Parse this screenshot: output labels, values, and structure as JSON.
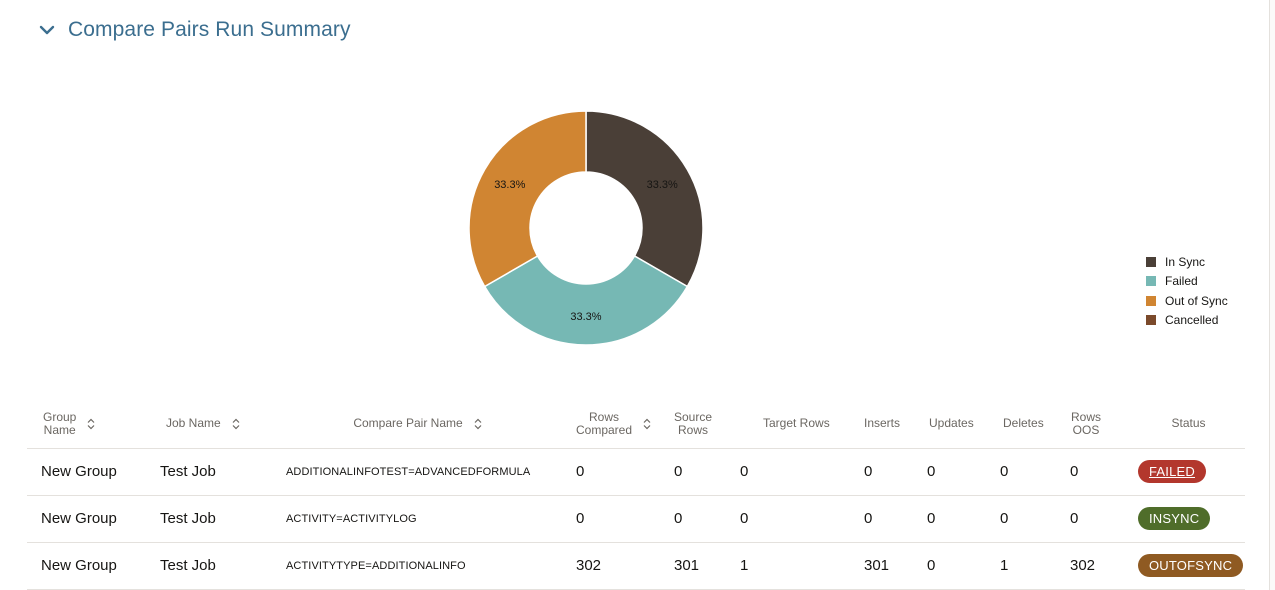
{
  "section": {
    "title": "Compare Pairs Run Summary"
  },
  "chart_data": {
    "type": "pie",
    "variant": "donut",
    "categories": [
      "In Sync",
      "Failed",
      "Out of Sync",
      "Cancelled"
    ],
    "values": [
      33.3,
      33.3,
      33.3,
      0
    ],
    "data_labels": [
      "33.3%",
      "33.3%",
      "33.3%",
      ""
    ],
    "colors": [
      "#4a3f37",
      "#76b8b4",
      "#d08532",
      "#7b4a2b"
    ],
    "legend_position": "right"
  },
  "table": {
    "headers": [
      {
        "label": "Group\nName",
        "sortable": true
      },
      {
        "label": "Job Name",
        "sortable": true
      },
      {
        "label": "Compare Pair Name",
        "sortable": true
      },
      {
        "label": "Rows\nCompared",
        "sortable": true
      },
      {
        "label": "Source\nRows",
        "sortable": false
      },
      {
        "label": "Target Rows",
        "sortable": false
      },
      {
        "label": "Inserts",
        "sortable": false
      },
      {
        "label": "Updates",
        "sortable": false
      },
      {
        "label": "Deletes",
        "sortable": false
      },
      {
        "label": "Rows\nOOS",
        "sortable": false
      },
      {
        "label": "Status",
        "sortable": false
      }
    ],
    "rows": [
      {
        "group": "New Group",
        "job": "Test Job",
        "pair": "ADDITIONALINFOTEST=ADVANCEDFORMULA",
        "rows_compared": "0",
        "source_rows": "0",
        "target_rows": "0",
        "inserts": "0",
        "updates": "0",
        "deletes": "0",
        "rows_oos": "0",
        "status": "FAILED"
      },
      {
        "group": "New Group",
        "job": "Test Job",
        "pair": "ACTIVITY=ACTIVITYLOG",
        "rows_compared": "0",
        "source_rows": "0",
        "target_rows": "0",
        "inserts": "0",
        "updates": "0",
        "deletes": "0",
        "rows_oos": "0",
        "status": "INSYNC"
      },
      {
        "group": "New Group",
        "job": "Test Job",
        "pair": "ACTIVITYTYPE=ADDITIONALINFO",
        "rows_compared": "302",
        "source_rows": "301",
        "target_rows": "1",
        "inserts": "301",
        "updates": "0",
        "deletes": "1",
        "rows_oos": "302",
        "status": "OUTOFSYNC"
      }
    ]
  },
  "icons": {
    "collapse": "chevron-down-icon",
    "sort": "sort-arrows-icon"
  }
}
